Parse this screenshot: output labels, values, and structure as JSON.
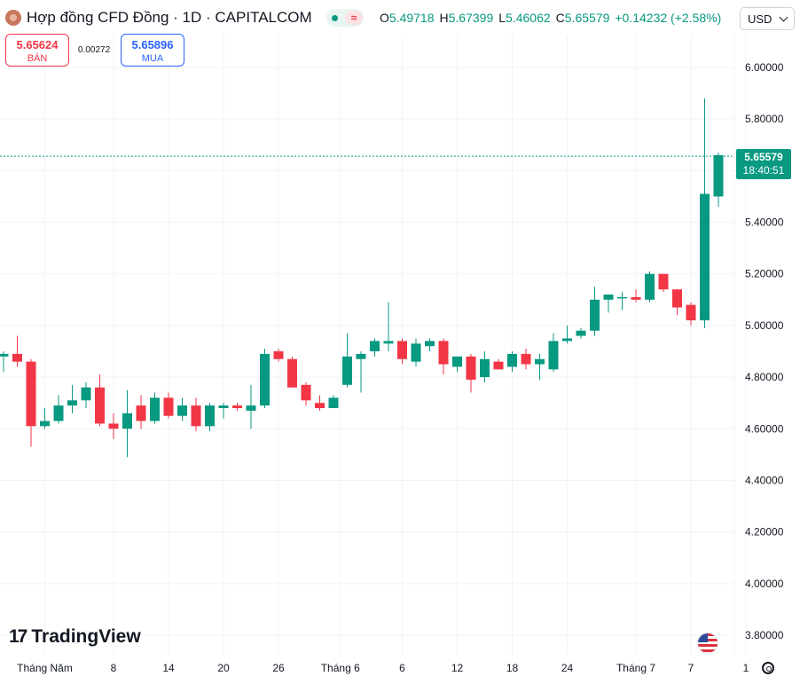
{
  "header": {
    "title": "Hợp đồng CFD Đồng · 1D · CAPITALCOM",
    "ohlc": [
      {
        "key": "O",
        "value": "5.49718"
      },
      {
        "key": "H",
        "value": "5.67399"
      },
      {
        "key": "L",
        "value": "5.46062"
      },
      {
        "key": "C",
        "value": "5.65579"
      }
    ],
    "change": "+0.14232 (+2.58%)",
    "currency": "USD"
  },
  "trade": {
    "sell_price": "5.65624",
    "sell_label": "BÁN",
    "spread": "0.00272",
    "buy_price": "5.65896",
    "buy_label": "MUA"
  },
  "price_tag": {
    "price": "5.65579",
    "countdown": "18:40:51"
  },
  "branding": {
    "logo_text": "TradingView",
    "logo_mark": "17"
  },
  "colors": {
    "up": "#089981",
    "down": "#f23645",
    "grid": "#f0f3fa",
    "last_price_line": "#089981"
  },
  "chart_data": {
    "type": "candlestick",
    "y_axis": {
      "ticks": [
        "6.00000",
        "5.80000",
        "5.60000",
        "5.40000",
        "5.20000",
        "5.00000",
        "4.80000",
        "4.60000",
        "4.40000",
        "4.20000",
        "4.00000",
        "3.80000"
      ],
      "range": [
        3.78,
        6.08
      ],
      "position": "right"
    },
    "x_axis": {
      "labels": [
        "Tháng Năm",
        "8",
        "14",
        "20",
        "26",
        "Tháng 6",
        "6",
        "12",
        "18",
        "24",
        "Tháng 7",
        "7",
        "1"
      ]
    },
    "grid": true,
    "last_price": 5.65579,
    "candles": [
      [
        4.88,
        4.9,
        4.82,
        4.89
      ],
      [
        4.89,
        4.96,
        4.84,
        4.86
      ],
      [
        4.86,
        4.87,
        4.53,
        4.61
      ],
      [
        4.61,
        4.68,
        4.6,
        4.63
      ],
      [
        4.63,
        4.73,
        4.62,
        4.69
      ],
      [
        4.69,
        4.77,
        4.66,
        4.71
      ],
      [
        4.71,
        4.78,
        4.68,
        4.76
      ],
      [
        4.76,
        4.81,
        4.61,
        4.62
      ],
      [
        4.62,
        4.66,
        4.56,
        4.6
      ],
      [
        4.6,
        4.75,
        4.49,
        4.66
      ],
      [
        4.69,
        4.73,
        4.6,
        4.63
      ],
      [
        4.63,
        4.74,
        4.62,
        4.72
      ],
      [
        4.72,
        4.74,
        4.64,
        4.65
      ],
      [
        4.65,
        4.72,
        4.63,
        4.69
      ],
      [
        4.69,
        4.72,
        4.59,
        4.61
      ],
      [
        4.61,
        4.7,
        4.59,
        4.69
      ],
      [
        4.68,
        4.7,
        4.64,
        4.69
      ],
      [
        4.69,
        4.7,
        4.67,
        4.68
      ],
      [
        4.67,
        4.77,
        4.6,
        4.69
      ],
      [
        4.69,
        4.91,
        4.68,
        4.89
      ],
      [
        4.9,
        4.91,
        4.86,
        4.87
      ],
      [
        4.87,
        4.88,
        4.76,
        4.76
      ],
      [
        4.77,
        4.78,
        4.69,
        4.71
      ],
      [
        4.7,
        4.73,
        4.67,
        4.68
      ],
      [
        4.68,
        4.73,
        4.68,
        4.72
      ],
      [
        4.77,
        4.97,
        4.76,
        4.88
      ],
      [
        4.87,
        4.9,
        4.74,
        4.89
      ],
      [
        4.9,
        4.95,
        4.88,
        4.94
      ],
      [
        4.93,
        5.09,
        4.9,
        4.94
      ],
      [
        4.94,
        4.95,
        4.85,
        4.87
      ],
      [
        4.86,
        4.95,
        4.84,
        4.93
      ],
      [
        4.92,
        4.95,
        4.9,
        4.94
      ],
      [
        4.94,
        4.95,
        4.81,
        4.85
      ],
      [
        4.84,
        4.88,
        4.82,
        4.88
      ],
      [
        4.88,
        4.89,
        4.74,
        4.79
      ],
      [
        4.8,
        4.9,
        4.78,
        4.87
      ],
      [
        4.86,
        4.87,
        4.83,
        4.83
      ],
      [
        4.84,
        4.9,
        4.82,
        4.89
      ],
      [
        4.89,
        4.91,
        4.83,
        4.85
      ],
      [
        4.85,
        4.89,
        4.79,
        4.87
      ],
      [
        4.83,
        4.97,
        4.82,
        4.94
      ],
      [
        4.94,
        5.0,
        4.93,
        4.95
      ],
      [
        4.96,
        4.99,
        4.95,
        4.98
      ],
      [
        4.98,
        5.15,
        4.96,
        5.1
      ],
      [
        5.1,
        5.12,
        5.05,
        5.12
      ],
      [
        5.11,
        5.13,
        5.06,
        5.11
      ],
      [
        5.11,
        5.14,
        5.09,
        5.1
      ],
      [
        5.1,
        5.21,
        5.09,
        5.2
      ],
      [
        5.2,
        5.2,
        5.13,
        5.14
      ],
      [
        5.14,
        5.14,
        5.04,
        5.07
      ],
      [
        5.08,
        5.09,
        5.0,
        5.02
      ],
      [
        5.02,
        5.88,
        4.99,
        5.51
      ],
      [
        5.5,
        5.67,
        5.46,
        5.66
      ]
    ]
  }
}
